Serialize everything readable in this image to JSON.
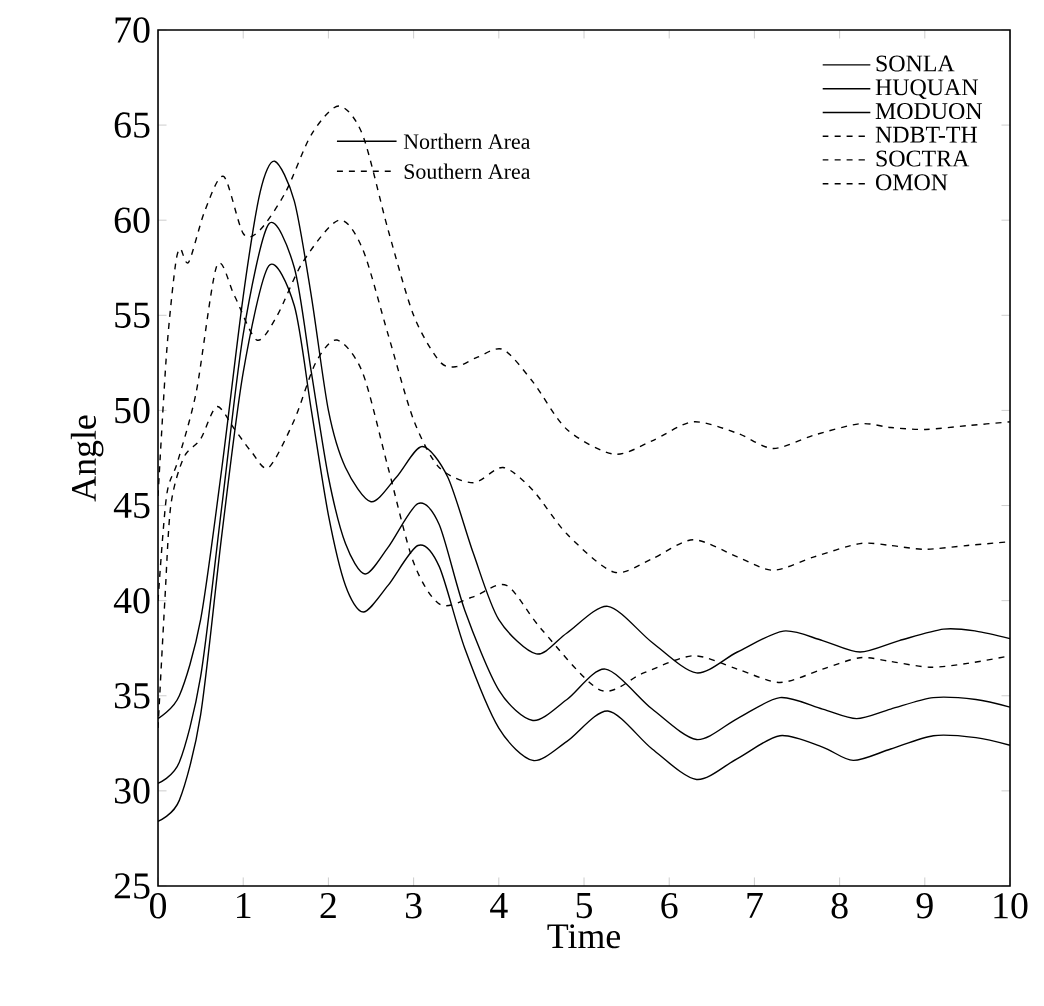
{
  "chart_data": {
    "type": "line",
    "xlabel": "Time",
    "ylabel": "Angle",
    "xlim": [
      0,
      10
    ],
    "ylim": [
      25,
      70
    ],
    "xticks": [
      0,
      1,
      2,
      3,
      4,
      5,
      6,
      7,
      8,
      9,
      10
    ],
    "yticks": [
      25,
      30,
      35,
      40,
      45,
      50,
      55,
      60,
      65,
      70
    ],
    "grid": false,
    "legend": "top right",
    "marker": "none",
    "annotations": [
      "Northern Area",
      "Southern Area"
    ],
    "series": [
      {
        "name": "SONLA",
        "color": "#000000",
        "line_style": "solid",
        "x": [
          0,
          0.25,
          0.5,
          0.75,
          1.0,
          1.2,
          1.37,
          1.6,
          1.8,
          2.0,
          2.2,
          2.5,
          2.8,
          3.1,
          3.4,
          3.7,
          4.0,
          4.44,
          4.8,
          5.28,
          5.8,
          6.32,
          6.8,
          7.34,
          7.8,
          8.24,
          8.7,
          9.22,
          9.6,
          10
        ],
        "values": [
          33.8,
          35,
          39,
          47,
          56,
          61.5,
          63.1,
          61,
          56,
          50,
          47,
          45.2,
          46.5,
          48.1,
          46.5,
          42.5,
          39,
          37.2,
          38.3,
          39.7,
          37.8,
          36.2,
          37.3,
          38.4,
          37.9,
          37.3,
          37.9,
          38.5,
          38.4,
          38.0
        ]
      },
      {
        "name": "HUQUAN",
        "color": "#000000",
        "line_style": "solid",
        "x": [
          0,
          0.25,
          0.5,
          0.75,
          1.0,
          1.3,
          1.6,
          1.8,
          2.0,
          2.2,
          2.43,
          2.7,
          3.05,
          3.3,
          3.6,
          4.0,
          4.4,
          4.8,
          5.25,
          5.8,
          6.32,
          6.8,
          7.3,
          7.8,
          8.2,
          8.6,
          9.1,
          9.6,
          10
        ],
        "values": [
          30.4,
          31.5,
          36,
          45,
          54,
          59.8,
          57.5,
          52,
          46.5,
          43,
          41.4,
          42.8,
          45.1,
          44,
          39.5,
          35.3,
          33.7,
          34.8,
          36.4,
          34.3,
          32.7,
          33.8,
          34.9,
          34.3,
          33.8,
          34.3,
          34.9,
          34.8,
          34.4
        ]
      },
      {
        "name": "MODUON",
        "color": "#000000",
        "line_style": "solid",
        "x": [
          0,
          0.25,
          0.5,
          0.75,
          1.0,
          1.3,
          1.6,
          1.8,
          2.0,
          2.2,
          2.41,
          2.7,
          3.05,
          3.3,
          3.6,
          4.0,
          4.4,
          4.8,
          5.28,
          5.8,
          6.32,
          6.8,
          7.3,
          7.8,
          8.16,
          8.6,
          9.1,
          9.6,
          10
        ],
        "values": [
          28.4,
          29.5,
          34,
          43.5,
          52,
          57.6,
          55.5,
          50,
          44.5,
          40.8,
          39.4,
          40.8,
          42.9,
          41.8,
          37.5,
          33.3,
          31.6,
          32.6,
          34.2,
          32.2,
          30.6,
          31.7,
          32.9,
          32.3,
          31.6,
          32.2,
          32.9,
          32.8,
          32.4
        ]
      },
      {
        "name": "NDBT-TH",
        "color": "#000000",
        "line_style": "dashed",
        "x": [
          0,
          0.1,
          0.2,
          0.26,
          0.36,
          0.55,
          0.77,
          1.0,
          1.2,
          1.5,
          1.8,
          2.12,
          2.4,
          2.7,
          3.0,
          3.3,
          3.5,
          3.75,
          4.05,
          4.4,
          4.8,
          5.35,
          5.8,
          6.28,
          6.8,
          7.22,
          7.7,
          8.24,
          8.6,
          9.01,
          9.5,
          10
        ],
        "values": [
          45.5,
          53,
          57.5,
          58.5,
          57.8,
          60.5,
          62.3,
          59.3,
          59.5,
          61.5,
          64.5,
          66,
          64.5,
          59.5,
          55,
          52.6,
          52.3,
          52.8,
          53.2,
          51.5,
          49,
          47.7,
          48.4,
          49.4,
          48.8,
          48.0,
          48.7,
          49.3,
          49.1,
          49.0,
          49.2,
          49.4
        ]
      },
      {
        "name": "SOCTRA",
        "color": "#000000",
        "line_style": "dashed",
        "x": [
          0,
          0.1,
          0.23,
          0.45,
          0.69,
          0.9,
          1.16,
          1.4,
          1.7,
          2.12,
          2.4,
          2.7,
          3.0,
          3.3,
          3.7,
          4.05,
          4.4,
          4.8,
          5.35,
          5.8,
          6.28,
          6.8,
          7.22,
          7.7,
          8.24,
          8.6,
          9.0,
          9.5,
          10
        ],
        "values": [
          40,
          45.5,
          47.3,
          51,
          57.6,
          56,
          53.7,
          55,
          57.8,
          60,
          58.5,
          54,
          49.5,
          47,
          46.2,
          47,
          45.8,
          43.5,
          41.5,
          42.2,
          43.2,
          42.3,
          41.6,
          42.3,
          43.0,
          42.9,
          42.7,
          42.9,
          43.1
        ]
      },
      {
        "name": "OMON",
        "color": "#000000",
        "line_style": "dashed",
        "x": [
          0,
          0.08,
          0.15,
          0.3,
          0.5,
          0.69,
          0.9,
          1.1,
          1.3,
          1.6,
          1.85,
          2.1,
          2.4,
          2.7,
          3.0,
          3.31,
          3.7,
          4.09,
          4.5,
          5.19,
          5.7,
          6.28,
          6.8,
          7.3,
          7.8,
          8.24,
          8.6,
          9.06,
          9.5,
          10
        ],
        "values": [
          33.3,
          40,
          45,
          47.5,
          48.5,
          50.2,
          49,
          47.8,
          47,
          49.5,
          52.5,
          53.7,
          52,
          47,
          42,
          39.8,
          40.2,
          40.8,
          38.5,
          35.3,
          36.2,
          37.1,
          36.4,
          35.7,
          36.4,
          37.0,
          36.8,
          36.5,
          36.7,
          37.1
        ]
      }
    ]
  }
}
